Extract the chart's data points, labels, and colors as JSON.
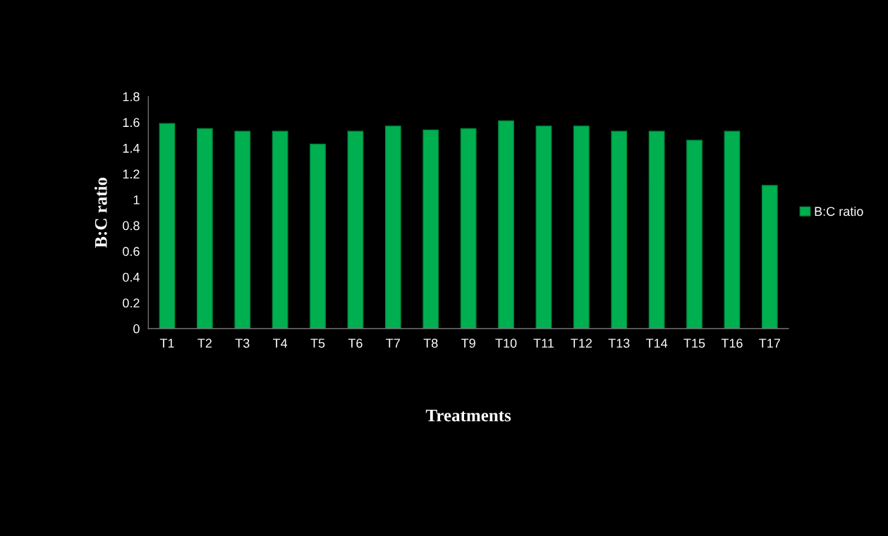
{
  "chart_data": {
    "type": "bar",
    "xlabel": "Treatments",
    "ylabel": "B:C ratio",
    "categories": [
      "T1",
      "T2",
      "T3",
      "T4",
      "T5",
      "T6",
      "T7",
      "T8",
      "T9",
      "T10",
      "T11",
      "T12",
      "T13",
      "T14",
      "T15",
      "T16",
      "T17"
    ],
    "series": [
      {
        "name": "B:C ratio",
        "color": "#00b050",
        "values": [
          1.59,
          1.55,
          1.53,
          1.53,
          1.43,
          1.53,
          1.57,
          1.54,
          1.55,
          1.61,
          1.57,
          1.57,
          1.53,
          1.53,
          1.46,
          1.53,
          1.11
        ]
      }
    ],
    "ylim": [
      0,
      1.8
    ],
    "yticks": [
      {
        "value": 0,
        "label": "0"
      },
      {
        "value": 0.2,
        "label": "0.2"
      },
      {
        "value": 0.4,
        "label": "0.4"
      },
      {
        "value": 0.6,
        "label": "0.6"
      },
      {
        "value": 0.8,
        "label": "0.8"
      },
      {
        "value": 1,
        "label": "1"
      },
      {
        "value": 1.2,
        "label": "1.2"
      },
      {
        "value": 1.4,
        "label": "1.4"
      },
      {
        "value": 1.6,
        "label": "1.6"
      },
      {
        "value": 1.8,
        "label": "1.8"
      }
    ],
    "grid": false,
    "legend": "right"
  }
}
